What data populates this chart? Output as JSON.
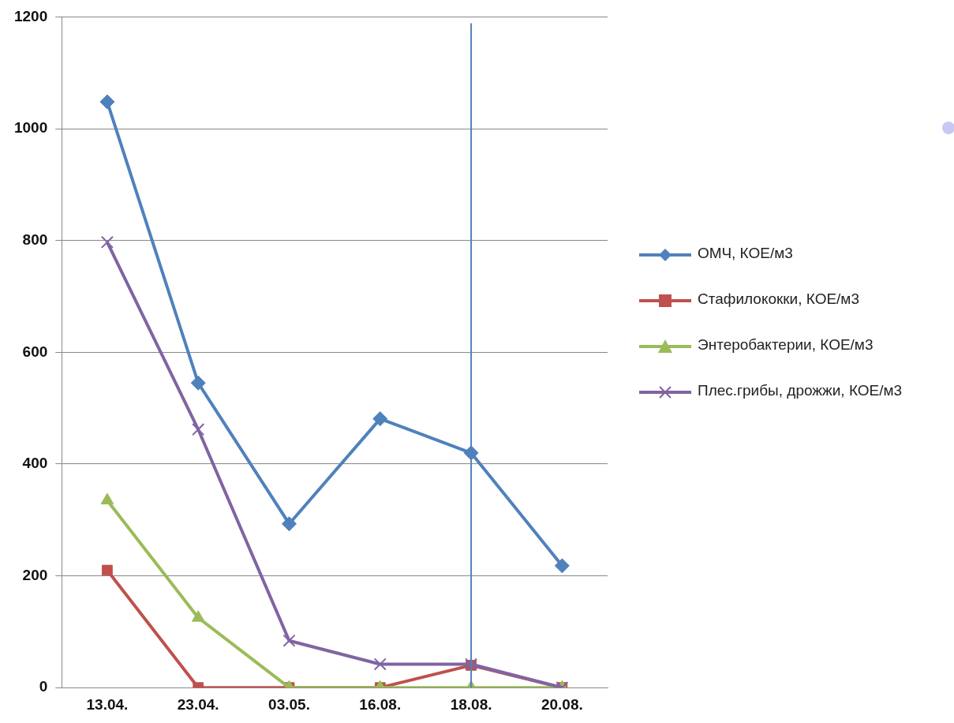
{
  "chart_data": {
    "type": "line",
    "categories": [
      "13.04.",
      "23.04.",
      "03.05.",
      "16.08.",
      "18.08.",
      "20.08."
    ],
    "series": [
      {
        "name": "ОМЧ, КОЕ/м3",
        "color": "#4f81bd",
        "marker": "diamond",
        "values": [
          1048,
          545,
          293,
          481,
          420,
          218
        ]
      },
      {
        "name": "Стафилококки, КОЕ/м3",
        "color": "#c0504d",
        "marker": "square",
        "values": [
          210,
          0,
          0,
          0,
          40,
          0
        ]
      },
      {
        "name": "Энтеробактерии, КОЕ/м3",
        "color": "#9bbb59",
        "marker": "triangle",
        "values": [
          335,
          125,
          0,
          0,
          0,
          0
        ]
      },
      {
        "name": "Плес.грибы, дрожжи, КОЕ/м3",
        "color": "#8064a2",
        "marker": "cross",
        "values": [
          797,
          462,
          84,
          42,
          42,
          0
        ]
      }
    ],
    "ylim": [
      0,
      1200
    ],
    "yticks": [
      0,
      200,
      400,
      600,
      800,
      1000,
      1200
    ],
    "grid": "y",
    "legend": "right",
    "line_style": "solid",
    "ref_lines": [
      {
        "axis": "x",
        "value": "18.08.",
        "color": "#4f81bd"
      }
    ]
  }
}
